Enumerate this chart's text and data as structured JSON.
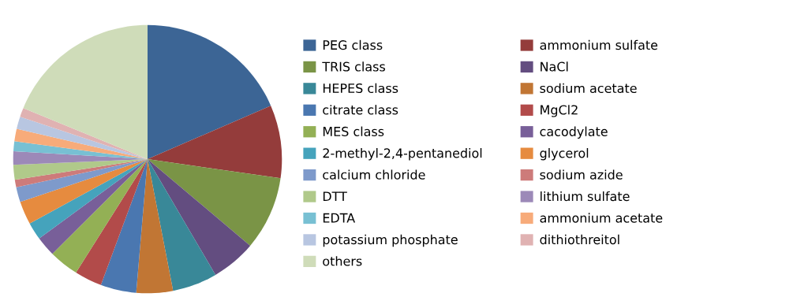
{
  "chart_data": {
    "type": "pie",
    "legend": "right",
    "categories": [
      "PEG class",
      "ammonium sulfate",
      "TRIS class",
      "NaCl",
      "HEPES class",
      "sodium acetate",
      "citrate class",
      "MgCl2",
      "MES class",
      "cacodylate",
      "2-methyl-2,4-pentanediol",
      "glycerol",
      "calcium chloride",
      "sodium azide",
      "DTT",
      "lithium sulfate",
      "EDTA",
      "ammonium acetate",
      "potassium phosphate",
      "dithiothreitol",
      "others"
    ],
    "values": [
      18.5,
      8.8,
      8.9,
      5.4,
      5.4,
      4.4,
      4.3,
      3.3,
      3.6,
      2.4,
      2.1,
      2.8,
      1.8,
      0.9,
      1.8,
      1.6,
      1.2,
      1.5,
      1.5,
      1.1,
      18.8
    ],
    "colors": [
      "#3c6595",
      "#943c3b",
      "#7a9446",
      "#634d80",
      "#398898",
      "#c17634",
      "#4a77b0",
      "#b24b4a",
      "#93b055",
      "#785f99",
      "#45a3bc",
      "#e68b3f",
      "#7e9acb",
      "#cd7b7a",
      "#b0c98a",
      "#9c89b8",
      "#78c0d3",
      "#f7ab7a",
      "#b8c6e1",
      "#e0b2b2",
      "#cfdcb9"
    ]
  }
}
